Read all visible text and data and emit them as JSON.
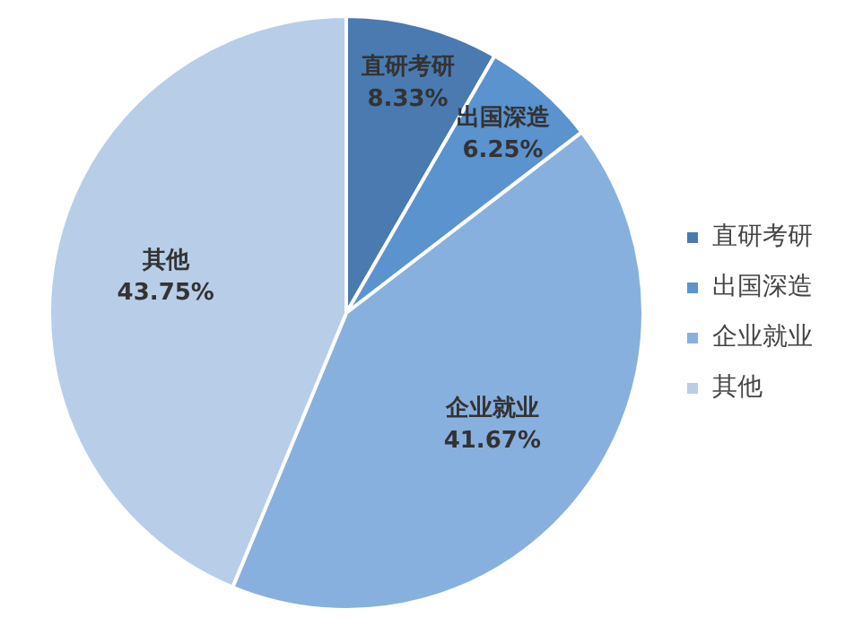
{
  "chart_data": {
    "type": "pie",
    "categories": [
      "直研考研",
      "出国深造",
      "企业就业",
      "其他"
    ],
    "values": [
      8.33,
      6.25,
      41.67,
      43.75
    ],
    "colors": [
      "#4a7ab0",
      "#5b93cf",
      "#88b0de",
      "#b8cde8"
    ],
    "value_labels": [
      "8.33%",
      "6.25%",
      "41.67%",
      "43.75%"
    ],
    "legend": "right"
  }
}
